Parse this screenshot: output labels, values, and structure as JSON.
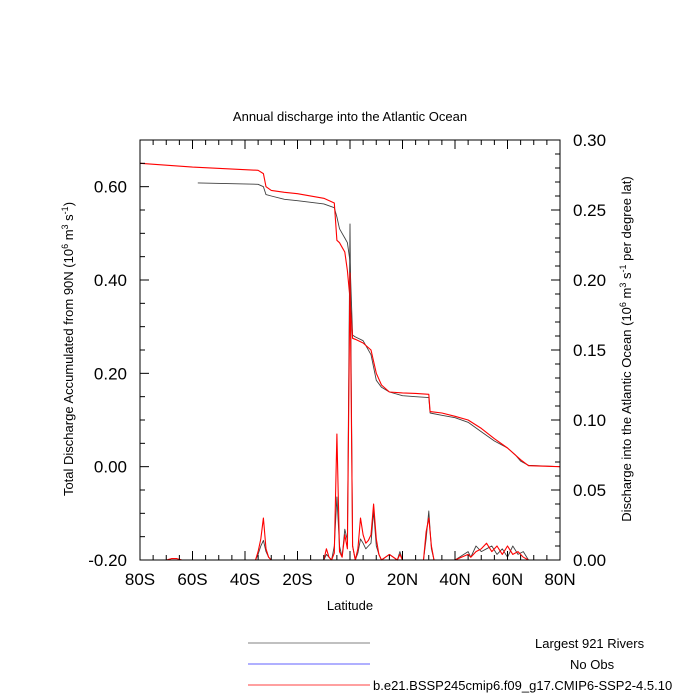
{
  "chart_data": {
    "type": "line",
    "title": "Annual discharge into the Atlantic Ocean",
    "xlabel": "Latitude",
    "ylabel_left": "Total Discharge Accumulated from 90N (10^6 m^3 s^-1)",
    "ylabel_right": "Discharge into the Atlantic Ocean (10^6 m^3 s^-1 per degree lat)",
    "xlim": [
      -80,
      80
    ],
    "ylim_left": [
      -0.2,
      0.7
    ],
    "ylim_right": [
      0.0,
      0.3
    ],
    "x_ticks": [
      {
        "value": -80,
        "label": "80S"
      },
      {
        "value": -60,
        "label": "60S"
      },
      {
        "value": -40,
        "label": "40S"
      },
      {
        "value": -20,
        "label": "20S"
      },
      {
        "value": 0,
        "label": "0"
      },
      {
        "value": 20,
        "label": "20N"
      },
      {
        "value": 40,
        "label": "40N"
      },
      {
        "value": 60,
        "label": "60N"
      },
      {
        "value": 80,
        "label": "80N"
      }
    ],
    "y_ticks_left": [
      {
        "value": 0.6,
        "label": "0.60"
      },
      {
        "value": 0.4,
        "label": "0.40"
      },
      {
        "value": 0.2,
        "label": "0.20"
      },
      {
        "value": 0.0,
        "label": "0.00"
      },
      {
        "value": -0.2,
        "label": "-0.20"
      }
    ],
    "y_ticks_right": [
      {
        "value": 0.3,
        "label": "0.30"
      },
      {
        "value": 0.25,
        "label": "0.25"
      },
      {
        "value": 0.2,
        "label": "0.20"
      },
      {
        "value": 0.15,
        "label": "0.15"
      },
      {
        "value": 0.1,
        "label": "0.10"
      },
      {
        "value": 0.05,
        "label": "0.05"
      },
      {
        "value": 0.0,
        "label": "0.00"
      }
    ],
    "legend": {
      "placement": "bottom",
      "entries": [
        {
          "label": "Largest 921 Rivers",
          "color": "#808080"
        },
        {
          "label": "No Obs",
          "color": "#6060ff"
        },
        {
          "label": "b.e21.BSSP245cmip6.f09_g17.CMIP6-SSP2-4.5.10",
          "color": "#ff4040"
        }
      ]
    },
    "series": [
      {
        "name": "Largest 921 Rivers",
        "axis": "left",
        "color": "#404040",
        "x": [
          -58,
          -35,
          -33,
          -32,
          -30,
          -25,
          -20,
          -10,
          -6,
          -5,
          -4,
          -3,
          -2,
          -1,
          0,
          1,
          2,
          5,
          8,
          10,
          12,
          15,
          20,
          25,
          30,
          30.5,
          35,
          40,
          45,
          50,
          55,
          60,
          63,
          65,
          68,
          80
        ],
        "y": [
          0.608,
          0.605,
          0.6,
          0.583,
          0.58,
          0.573,
          0.57,
          0.563,
          0.555,
          0.535,
          0.51,
          0.5,
          0.49,
          0.48,
          0.44,
          0.282,
          0.278,
          0.27,
          0.24,
          0.185,
          0.17,
          0.16,
          0.152,
          0.15,
          0.148,
          0.115,
          0.11,
          0.105,
          0.095,
          0.075,
          0.055,
          0.04,
          0.025,
          0.012,
          0.003,
          0.0
        ]
      },
      {
        "name": "b.e21.BSSP245cmip6.f09_g17.CMIP6-SSP2-4.5.10",
        "axis": "left",
        "color": "#ff0000",
        "x": [
          -80,
          -60,
          -35,
          -33,
          -32,
          -30,
          -25,
          -20,
          -10,
          -6,
          -5,
          -4,
          -3,
          -2,
          -1,
          0,
          1,
          2,
          5,
          8,
          10,
          12,
          15,
          20,
          25,
          30,
          30.5,
          35,
          40,
          45,
          50,
          55,
          60,
          65,
          68,
          80
        ],
        "y": [
          0.65,
          0.642,
          0.635,
          0.628,
          0.6,
          0.592,
          0.588,
          0.585,
          0.575,
          0.565,
          0.485,
          0.48,
          0.47,
          0.46,
          0.42,
          0.36,
          0.275,
          0.273,
          0.265,
          0.25,
          0.2,
          0.175,
          0.16,
          0.158,
          0.157,
          0.155,
          0.118,
          0.115,
          0.108,
          0.1,
          0.082,
          0.06,
          0.04,
          0.015,
          0.002,
          0.0
        ]
      },
      {
        "name": "Largest 921 Rivers per degree lat",
        "axis": "right",
        "color": "#404040",
        "x": [
          -60,
          -36,
          -35,
          -34,
          -33,
          -32,
          -31,
          -30,
          -20,
          -10,
          -9,
          -8,
          -7,
          -6,
          -5,
          -4,
          -3,
          -2,
          -1,
          0,
          1,
          2,
          3,
          4,
          5,
          6,
          7,
          8,
          9,
          10,
          11,
          12,
          15,
          18,
          19,
          20,
          28,
          29,
          30,
          31,
          32,
          40,
          45,
          46,
          48,
          50,
          52,
          54,
          56,
          58,
          60,
          62,
          64,
          66,
          68,
          80
        ],
        "y": [
          0.0,
          0.0,
          0.004,
          0.01,
          0.014,
          0.006,
          0.002,
          0.0,
          0.0,
          0.0,
          0.004,
          0.002,
          0.0,
          0.01,
          0.045,
          0.01,
          0.002,
          0.022,
          0.014,
          0.24,
          0.01,
          0.0,
          0.005,
          0.015,
          0.012,
          0.008,
          0.01,
          0.012,
          0.035,
          0.01,
          0.004,
          0.0,
          0.004,
          0.0,
          0.006,
          0.0,
          0.0,
          0.015,
          0.035,
          0.008,
          0.0,
          0.0,
          0.006,
          0.002,
          0.01,
          0.006,
          0.008,
          0.01,
          0.004,
          0.008,
          0.002,
          0.01,
          0.004,
          0.006,
          0.0,
          0.0
        ]
      },
      {
        "name": "SSP2-4.5 per degree lat",
        "axis": "right",
        "color": "#ff0000",
        "x": [
          -70,
          -68,
          -66,
          -64,
          -36,
          -35,
          -34,
          -33,
          -32,
          -31,
          -30,
          -20,
          -10,
          -9,
          -8,
          -7,
          -6,
          -5,
          -4,
          -3,
          -2,
          -1,
          0,
          1,
          2,
          3,
          4,
          5,
          6,
          7,
          8,
          9,
          10,
          11,
          12,
          15,
          18,
          19,
          20,
          28,
          29,
          30,
          31,
          32,
          40,
          45,
          46,
          48,
          50,
          52,
          54,
          56,
          58,
          60,
          62,
          64,
          66,
          68,
          80
        ],
        "y": [
          0.0,
          0.001,
          0.001,
          0.0,
          0.0,
          0.006,
          0.015,
          0.03,
          0.008,
          0.002,
          0.0,
          0.0,
          0.0,
          0.008,
          0.002,
          0.0,
          0.005,
          0.09,
          0.006,
          0.002,
          0.018,
          0.008,
          0.205,
          0.01,
          0.0,
          0.008,
          0.03,
          0.018,
          0.012,
          0.014,
          0.018,
          0.04,
          0.015,
          0.004,
          0.0,
          0.004,
          0.0,
          0.004,
          0.0,
          0.0,
          0.02,
          0.03,
          0.01,
          0.0,
          0.0,
          0.004,
          0.002,
          0.006,
          0.008,
          0.012,
          0.006,
          0.01,
          0.004,
          0.01,
          0.004,
          0.006,
          0.002,
          0.0,
          0.0
        ]
      }
    ]
  }
}
